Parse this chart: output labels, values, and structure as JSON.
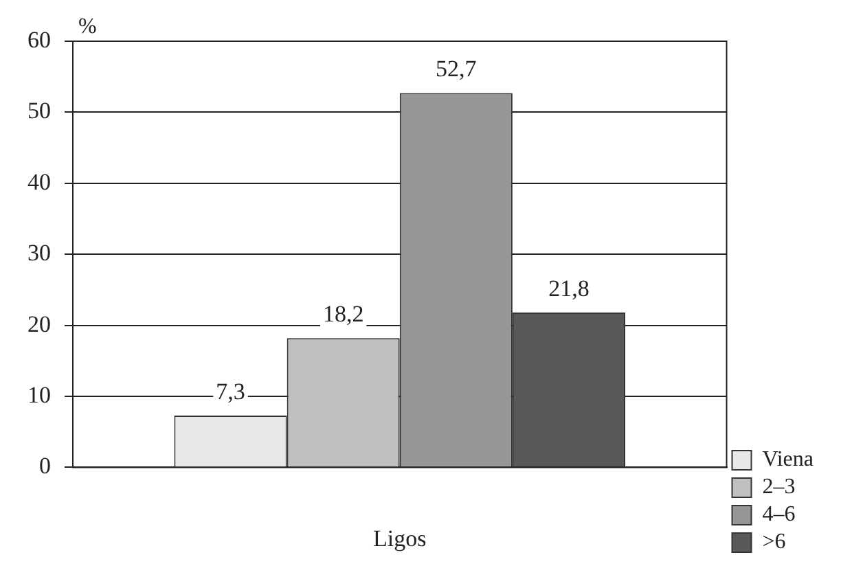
{
  "chart_data": {
    "type": "bar",
    "xlabel": "Ligos",
    "ylabel": "%",
    "categories": [
      null
    ],
    "series": [
      {
        "name": "Viena",
        "color": "#e8e8e8",
        "values": [
          7.3
        ],
        "value_labels": [
          "7,3"
        ]
      },
      {
        "name": "2–3",
        "color": "#bfbfbf",
        "values": [
          18.2
        ],
        "value_labels": [
          "18,2"
        ]
      },
      {
        "name": "4–6",
        "color": "#969696",
        "values": [
          52.7
        ],
        "value_labels": [
          "52,7"
        ]
      },
      {
        "name": ">6",
        "color": "#595959",
        "values": [
          21.8
        ],
        "value_labels": [
          "21,8"
        ]
      }
    ],
    "ylim": [
      0,
      60
    ],
    "yticks": [
      0,
      10,
      20,
      30,
      40,
      50,
      60
    ],
    "grid": "y",
    "legend": "bottom right"
  }
}
